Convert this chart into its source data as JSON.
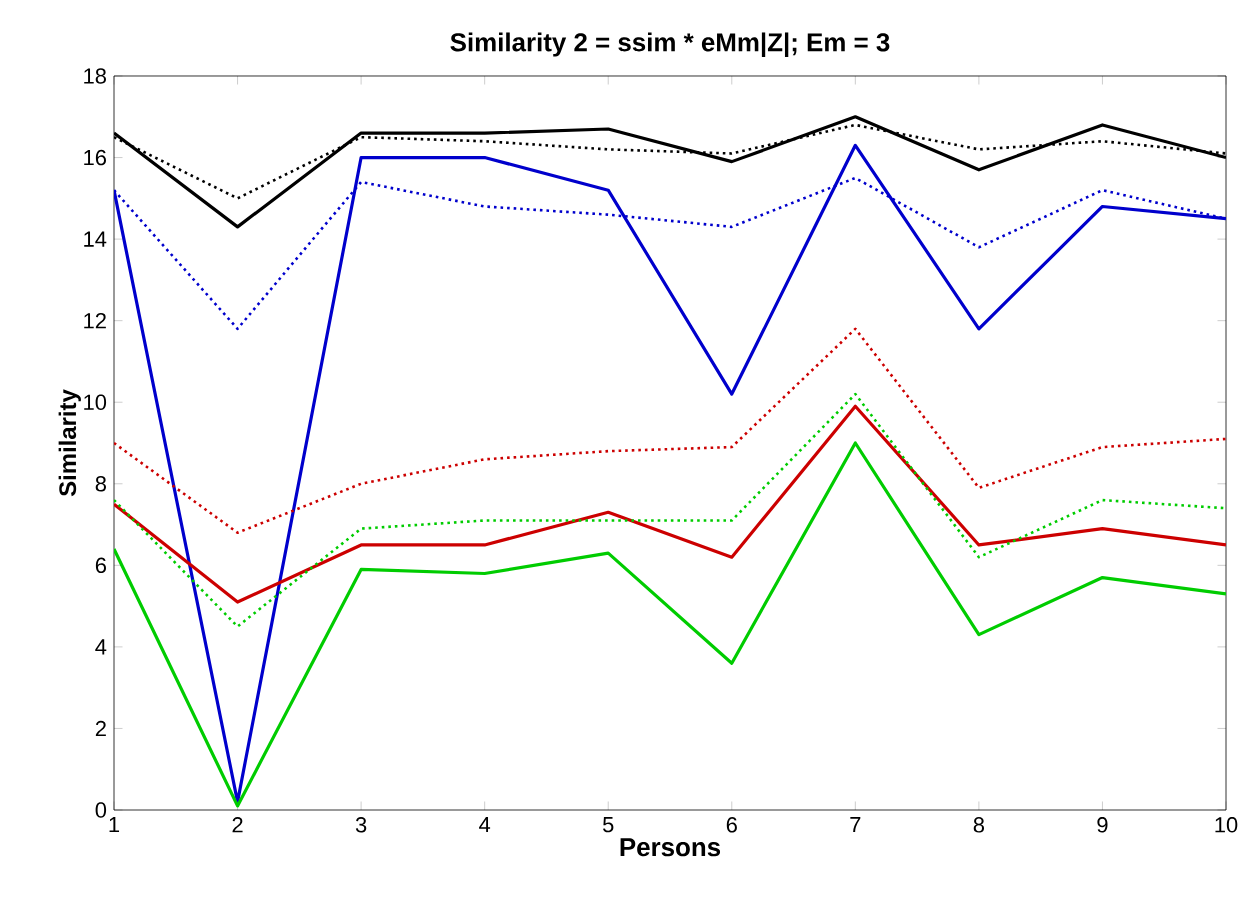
{
  "chart_data": {
    "type": "line",
    "title": "Similarity 2 = ssim * eMm|Z|;   Em = 3",
    "xlabel": "Persons",
    "ylabel": "Similarity",
    "x": [
      1,
      2,
      3,
      4,
      5,
      6,
      7,
      8,
      9,
      10
    ],
    "xlim": [
      1,
      10
    ],
    "xticks": [
      1,
      2,
      3,
      4,
      5,
      6,
      7,
      8,
      9,
      10
    ],
    "ylim": [
      0,
      18
    ],
    "yticks": [
      0,
      2,
      4,
      6,
      8,
      10,
      12,
      14,
      16,
      18
    ],
    "grid": false,
    "legend": false,
    "marker": "none",
    "series": [
      {
        "color": "#000000",
        "line_style": "solid",
        "values": [
          16.6,
          14.3,
          16.6,
          16.6,
          16.7,
          15.9,
          17.0,
          15.7,
          16.8,
          16.0
        ]
      },
      {
        "color": "#000000",
        "line_style": "dotted",
        "values": [
          16.5,
          15.0,
          16.5,
          16.4,
          16.2,
          16.1,
          16.8,
          16.2,
          16.4,
          16.1
        ]
      },
      {
        "color": "#0000cc",
        "line_style": "solid",
        "values": [
          15.2,
          0.2,
          16.0,
          16.0,
          15.2,
          10.2,
          16.3,
          11.8,
          14.8,
          14.5
        ]
      },
      {
        "color": "#0000cc",
        "line_style": "dotted",
        "values": [
          15.2,
          11.8,
          15.4,
          14.8,
          14.6,
          14.3,
          15.5,
          13.8,
          15.2,
          14.5
        ]
      },
      {
        "color": "#cc0000",
        "line_style": "solid",
        "values": [
          7.5,
          5.1,
          6.5,
          6.5,
          7.3,
          6.2,
          9.9,
          6.5,
          6.9,
          6.5
        ]
      },
      {
        "color": "#cc0000",
        "line_style": "dotted",
        "values": [
          9.0,
          6.8,
          8.0,
          8.6,
          8.8,
          8.9,
          11.8,
          7.9,
          8.9,
          9.1
        ]
      },
      {
        "color": "#00cc00",
        "line_style": "solid",
        "values": [
          6.4,
          0.1,
          5.9,
          5.8,
          6.3,
          3.6,
          9.0,
          4.3,
          5.7,
          5.3
        ]
      },
      {
        "color": "#00cc00",
        "line_style": "dotted",
        "values": [
          7.6,
          4.5,
          6.9,
          7.1,
          7.1,
          7.1,
          10.2,
          6.2,
          7.6,
          7.4
        ]
      }
    ]
  }
}
